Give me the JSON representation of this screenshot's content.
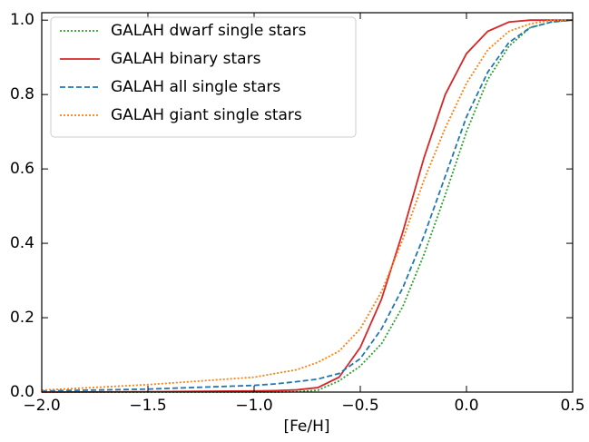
{
  "chart_data": {
    "type": "line",
    "xlabel": "[Fe/H]",
    "x": [
      -2.0,
      -1.5,
      -1.0,
      -0.9,
      -0.8,
      -0.7,
      -0.6,
      -0.5,
      -0.4,
      -0.3,
      -0.2,
      -0.1,
      0.0,
      0.1,
      0.2,
      0.3,
      0.4,
      0.5
    ],
    "series": [
      {
        "name": "GALAH dwarf single stars",
        "color": "#2ca02c",
        "linestyle": "dotted",
        "values": [
          0,
          0,
          0,
          0,
          0.001,
          0.005,
          0.03,
          0.07,
          0.13,
          0.23,
          0.37,
          0.53,
          0.7,
          0.84,
          0.93,
          0.98,
          0.995,
          1.0
        ]
      },
      {
        "name": "GALAH binary stars",
        "color": "#d62728",
        "linestyle": "solid",
        "values": [
          0,
          0.001,
          0.003,
          0.004,
          0.006,
          0.012,
          0.04,
          0.12,
          0.25,
          0.43,
          0.63,
          0.8,
          0.91,
          0.97,
          0.995,
          1.0,
          1.0,
          1.0
        ]
      },
      {
        "name": "GALAH all single stars",
        "color": "#1f77b4",
        "linestyle": "dashed",
        "values": [
          0.003,
          0.008,
          0.018,
          0.022,
          0.028,
          0.035,
          0.05,
          0.09,
          0.17,
          0.28,
          0.42,
          0.58,
          0.74,
          0.86,
          0.94,
          0.98,
          0.995,
          1.0
        ]
      },
      {
        "name": "GALAH giant single stars",
        "color": "#ff7f0e",
        "linestyle": "dotted",
        "values": [
          0.005,
          0.02,
          0.04,
          0.05,
          0.06,
          0.08,
          0.11,
          0.17,
          0.27,
          0.41,
          0.57,
          0.71,
          0.83,
          0.92,
          0.97,
          0.99,
          1.0,
          1.0
        ]
      }
    ],
    "xlim": [
      -2.0,
      0.5
    ],
    "xticks": [
      {
        "value": -2.0,
        "label": "−2.0"
      },
      {
        "value": -1.5,
        "label": "−1.5"
      },
      {
        "value": -1.0,
        "label": "−1.0"
      },
      {
        "value": -0.5,
        "label": "−0.5"
      },
      {
        "value": 0.0,
        "label": "0.0"
      },
      {
        "value": 0.5,
        "label": "0.5"
      }
    ],
    "ylim": [
      0,
      1.02
    ],
    "yticks": [
      {
        "value": 0.0,
        "label": "0.0"
      },
      0.2,
      0.4,
      0.6,
      0.8,
      {
        "value": 1.0,
        "label": "1.0"
      }
    ],
    "legend": "upper left"
  }
}
